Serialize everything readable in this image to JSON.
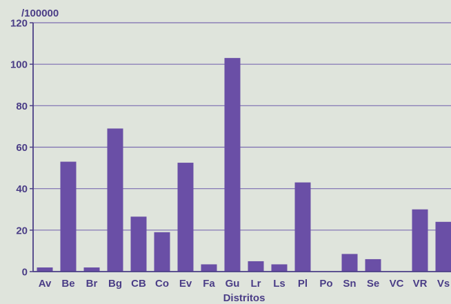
{
  "chart_data": {
    "type": "bar",
    "title": "",
    "unit_label": "/100000",
    "xlabel": "Distritos",
    "ylabel": "",
    "ylim": [
      0,
      120
    ],
    "yticks": [
      0,
      20,
      40,
      60,
      80,
      100,
      120
    ],
    "grid": true,
    "categories": [
      "Av",
      "Be",
      "Br",
      "Bg",
      "CB",
      "Co",
      "Ev",
      "Fa",
      "Gu",
      "Lr",
      "Ls",
      "Pl",
      "Po",
      "Sn",
      "Se",
      "VC",
      "VR",
      "Vs"
    ],
    "values": [
      2,
      53,
      2,
      69,
      26.5,
      19,
      52.5,
      3.5,
      103,
      5,
      3.5,
      43,
      0,
      8.5,
      6,
      0,
      30,
      24
    ],
    "colors": {
      "bar": "#6a4fa6",
      "axis": "#4a3d86",
      "grid": "#7a6bb0",
      "background": "#dfe4dc"
    }
  }
}
